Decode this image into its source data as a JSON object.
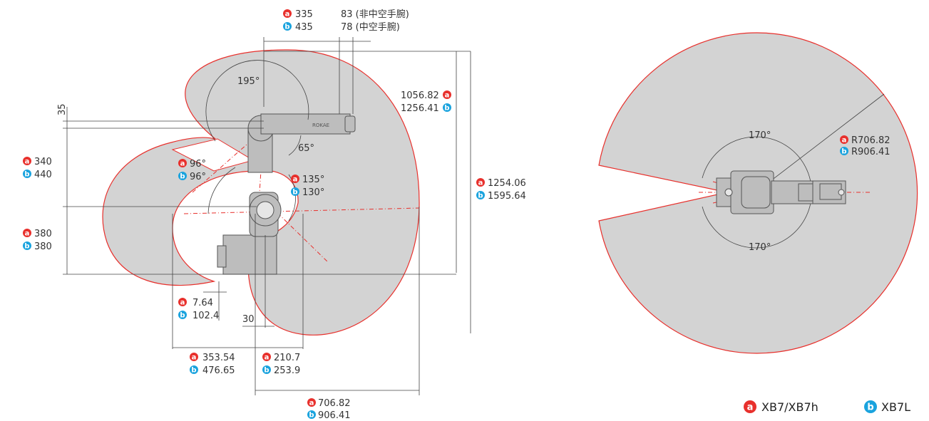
{
  "colors": {
    "a_badge": "#e8302c",
    "b_badge": "#1aa3de",
    "envelope_fill": "#d3d3d3",
    "envelope_stroke": "#e8302c",
    "text": "#333333"
  },
  "badges": {
    "a": "a",
    "b": "b"
  },
  "side_view": {
    "top_offset": {
      "a": "335",
      "b": "435"
    },
    "wrist_offset": {
      "non_hollow": "83 (非中空手腕)",
      "hollow": "78 (中空手腕)"
    },
    "angle_j1_top": "195°",
    "angle_j3": "65°",
    "angle_j2_left": {
      "a": "96°",
      "b": "96°"
    },
    "angle_j2_right": {
      "a": "135°",
      "b": "130°"
    },
    "dim_35": "35",
    "height_upper": {
      "a": "340",
      "b": "440"
    },
    "height_lower": {
      "a": "380",
      "b": "380"
    },
    "reach_top": {
      "a": "1056.82",
      "b": "1256.41"
    },
    "total_height": {
      "a": "1254.06",
      "b": "1595.64"
    },
    "min_offset": {
      "a": "7.64",
      "b": "102.4"
    },
    "dim_30": "30",
    "inner_reach": {
      "a": "353.54",
      "b": "476.65"
    },
    "inner_radius": {
      "a": "210.7",
      "b": "253.9"
    },
    "max_reach": {
      "a": "706.82",
      "b": "906.41"
    }
  },
  "top_view": {
    "angle_upper": "170°",
    "angle_lower": "170°",
    "radius": {
      "a": "R706.82",
      "b": "R906.41"
    }
  },
  "legend": {
    "a_label": "XB7/XB7h",
    "b_label": "XB7L"
  },
  "brand_mark": "ROKAE"
}
